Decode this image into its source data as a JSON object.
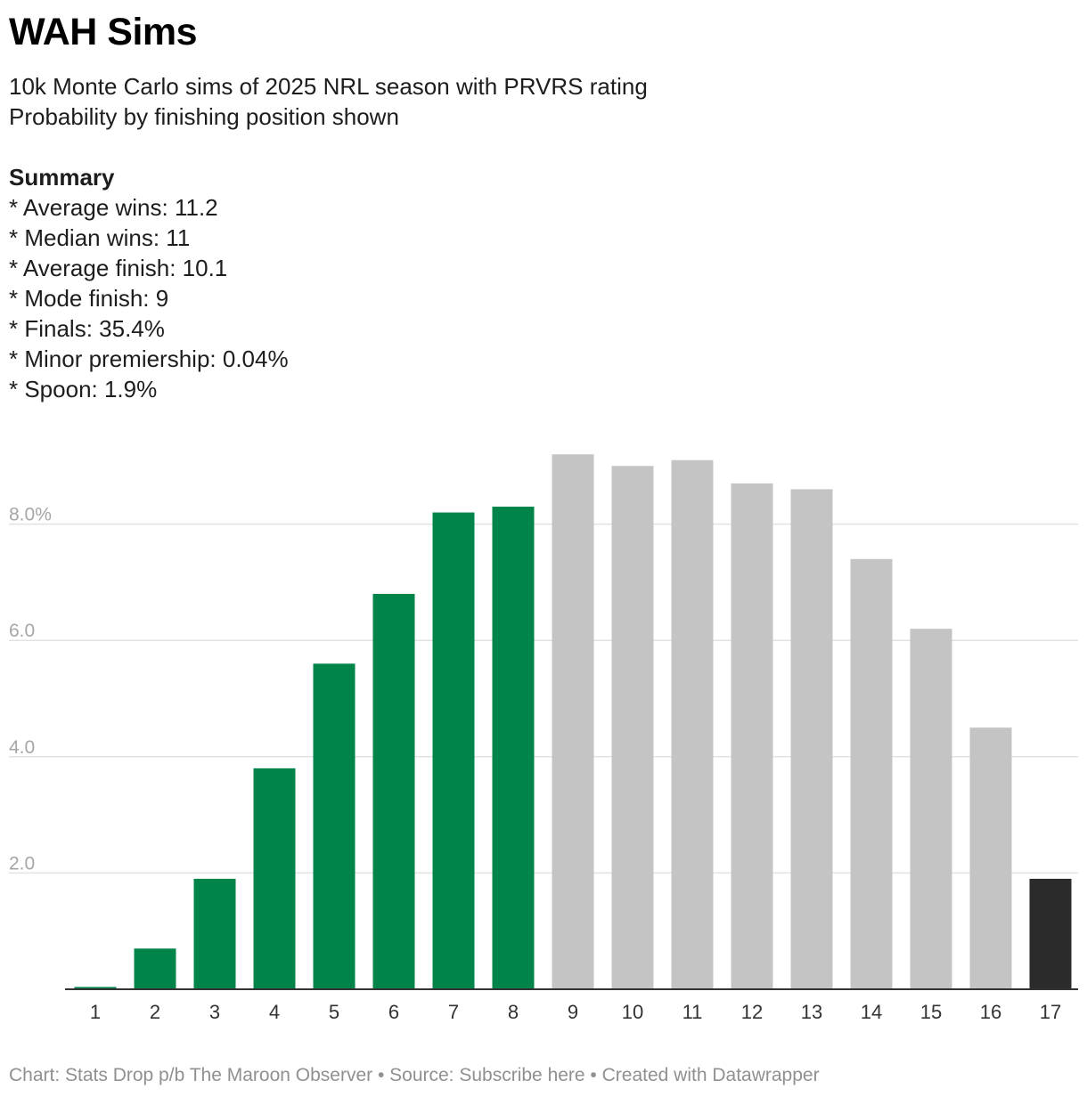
{
  "title": "WAH Sims",
  "subtitle": [
    "10k Monte Carlo sims of 2025 NRL season with PRVRS rating",
    "Probability by finishing position shown"
  ],
  "summary": {
    "heading": "Summary",
    "items": [
      "* Average wins: 11.2",
      "* Median wins: 11",
      "* Average finish: 10.1",
      "* Mode finish: 9",
      "* Finals: 35.4%",
      "* Minor premiership: 0.04%",
      "* Spoon: 1.9%"
    ]
  },
  "chart_data": {
    "type": "bar",
    "categories": [
      "1",
      "2",
      "3",
      "4",
      "5",
      "6",
      "7",
      "8",
      "9",
      "10",
      "11",
      "12",
      "13",
      "14",
      "15",
      "16",
      "17"
    ],
    "values": [
      0.04,
      0.7,
      1.9,
      3.8,
      5.6,
      6.8,
      8.2,
      8.3,
      9.2,
      9.0,
      9.1,
      8.7,
      8.6,
      7.4,
      6.2,
      4.5,
      1.9
    ],
    "bar_colors": [
      "#00844a",
      "#00844a",
      "#00844a",
      "#00844a",
      "#00844a",
      "#00844a",
      "#00844a",
      "#00844a",
      "#c4c4c4",
      "#c4c4c4",
      "#c4c4c4",
      "#c4c4c4",
      "#c4c4c4",
      "#c4c4c4",
      "#c4c4c4",
      "#c4c4c4",
      "#2b2b2b"
    ],
    "yticks": [
      {
        "value": 2,
        "label": "2.0"
      },
      {
        "value": 4,
        "label": "4.0"
      },
      {
        "value": 6,
        "label": "6.0"
      },
      {
        "value": 8,
        "label": "8.0%"
      }
    ],
    "ylim": [
      0,
      10
    ],
    "grid": true,
    "colors": {
      "axis": "#333333",
      "grid": "#e2e2e2",
      "tick_label": "#a6a6a6",
      "category_label": "#333333"
    }
  },
  "footer": "Chart: Stats Drop p/b The Maroon Observer • Source: Subscribe here • Created with Datawrapper"
}
